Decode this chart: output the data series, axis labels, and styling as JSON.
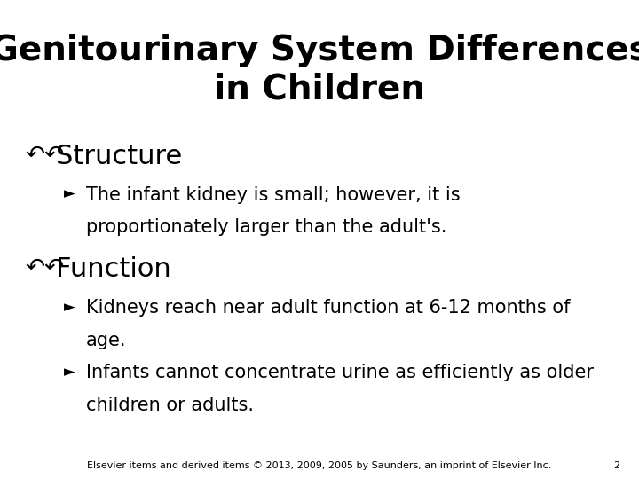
{
  "background_color": "#ffffff",
  "title_line1": "Genitourinary System Differences",
  "title_line2": "in Children",
  "title_fontsize": 28,
  "title_color": "#000000",
  "heading_fontsize": 22,
  "body_fontsize": 15,
  "text_color": "#000000",
  "heading_indent": 0.04,
  "sub_indent": 0.1,
  "sub_text_indent": 0.135,
  "sections": [
    {
      "heading": "Structure",
      "sub_bullets": [
        {
          "lines": [
            "The infant kidney is small; however, it is",
            "proportionately larger than the adult's."
          ]
        }
      ]
    },
    {
      "heading": "Function",
      "sub_bullets": [
        {
          "lines": [
            "Kidneys reach near adult function at 6-12 months of",
            "age."
          ]
        },
        {
          "lines": [
            "Infants cannot concentrate urine as efficiently as older",
            "children or adults."
          ]
        }
      ]
    }
  ],
  "footer_text": "Elsevier items and derived items © 2013, 2009, 2005 by Saunders, an imprint of Elsevier Inc.",
  "footer_page": "2",
  "footer_fontsize": 8
}
